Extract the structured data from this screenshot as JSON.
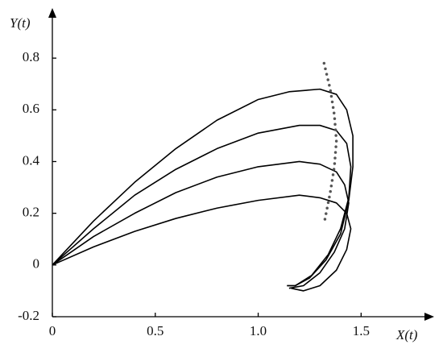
{
  "chart_data": {
    "type": "line",
    "x_label": "X(t)",
    "y_label": "Y(t)",
    "xlim": [
      0,
      1.8
    ],
    "ylim": [
      -0.2,
      0.95
    ],
    "xticks": [
      0,
      0.5,
      {
        "value": 1,
        "label": "1.0"
      },
      1.5
    ],
    "yticks": [
      -0.2,
      0,
      0.2,
      0.4,
      0.6,
      0.8
    ],
    "grid": false,
    "series": [
      {
        "color": "#000000",
        "style": "solid",
        "x": [
          0,
          0.2,
          0.4,
          0.6,
          0.8,
          1.0,
          1.15,
          1.3,
          1.38,
          1.43,
          1.46,
          1.46,
          1.44,
          1.4,
          1.33,
          1.25,
          1.18,
          1.14
        ],
        "values": [
          0,
          0.17,
          0.32,
          0.45,
          0.56,
          0.64,
          0.67,
          0.68,
          0.66,
          0.6,
          0.5,
          0.38,
          0.25,
          0.12,
          0.02,
          -0.05,
          -0.08,
          -0.08
        ]
      },
      {
        "color": "#000000",
        "style": "solid",
        "x": [
          0,
          0.2,
          0.4,
          0.6,
          0.8,
          1.0,
          1.2,
          1.3,
          1.38,
          1.43,
          1.45,
          1.44,
          1.4,
          1.34,
          1.26,
          1.18,
          1.14
        ],
        "values": [
          0,
          0.14,
          0.27,
          0.37,
          0.45,
          0.51,
          0.54,
          0.54,
          0.52,
          0.47,
          0.38,
          0.26,
          0.14,
          0.04,
          -0.04,
          -0.08,
          -0.08
        ]
      },
      {
        "color": "#000000",
        "style": "solid",
        "x": [
          0,
          0.2,
          0.4,
          0.6,
          0.8,
          1.0,
          1.2,
          1.3,
          1.38,
          1.42,
          1.44,
          1.42,
          1.37,
          1.3,
          1.22,
          1.15
        ],
        "values": [
          0,
          0.11,
          0.2,
          0.28,
          0.34,
          0.38,
          0.4,
          0.39,
          0.36,
          0.31,
          0.24,
          0.14,
          0.05,
          -0.03,
          -0.08,
          -0.09
        ]
      },
      {
        "color": "#000000",
        "style": "solid",
        "x": [
          0,
          0.2,
          0.4,
          0.6,
          0.8,
          1.0,
          1.2,
          1.3,
          1.38,
          1.43,
          1.45,
          1.43,
          1.38,
          1.3,
          1.22,
          1.16
        ],
        "values": [
          0,
          0.07,
          0.13,
          0.18,
          0.22,
          0.25,
          0.27,
          0.26,
          0.24,
          0.2,
          0.14,
          0.06,
          -0.02,
          -0.08,
          -0.1,
          -0.09
        ]
      },
      {
        "color": "#555555",
        "style": "dotted",
        "x": [
          1.32,
          1.35,
          1.37,
          1.38,
          1.37,
          1.35,
          1.32
        ],
        "values": [
          0.78,
          0.68,
          0.58,
          0.48,
          0.38,
          0.28,
          0.16
        ]
      }
    ]
  }
}
